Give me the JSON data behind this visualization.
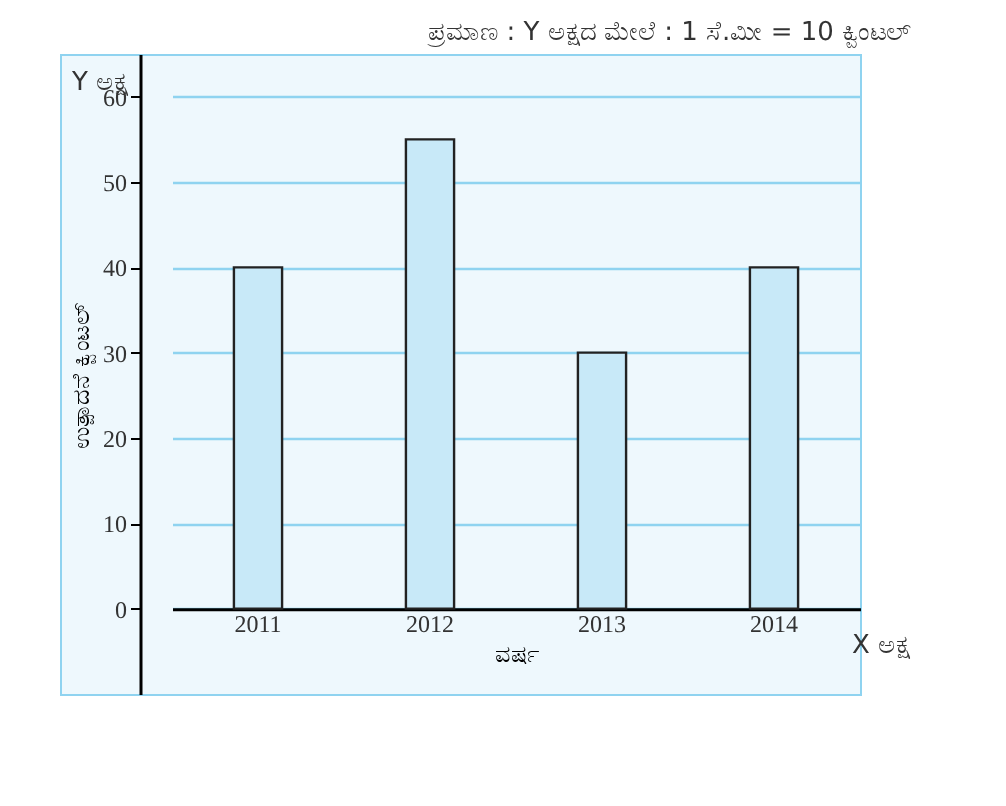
{
  "chart_data": {
    "type": "bar",
    "title": "ಪ್ರಮಾಣ : Y ಅಕ್ಷದ ಮೇಲೆ : 1 ಸೆ.ಮೀ = 10 ಕ್ವಿಂಟಲ್",
    "xlabel": "ವರ್ಷ",
    "ylabel": "ಉತ್ಪಾದನೆ ಕ್ವಿಂಟಲ್",
    "annotations": [
      "Y ಅಕ್ಷ",
      "X ಅಕ್ಷ"
    ],
    "categories": [
      "2011",
      "2012",
      "2013",
      "2014"
    ],
    "values": [
      40,
      55,
      30,
      40
    ],
    "color": "#c8e9f8",
    "ylim": [
      -10,
      65
    ],
    "yticks": [
      0,
      10,
      20,
      30,
      40,
      50,
      60
    ],
    "grid": true
  }
}
